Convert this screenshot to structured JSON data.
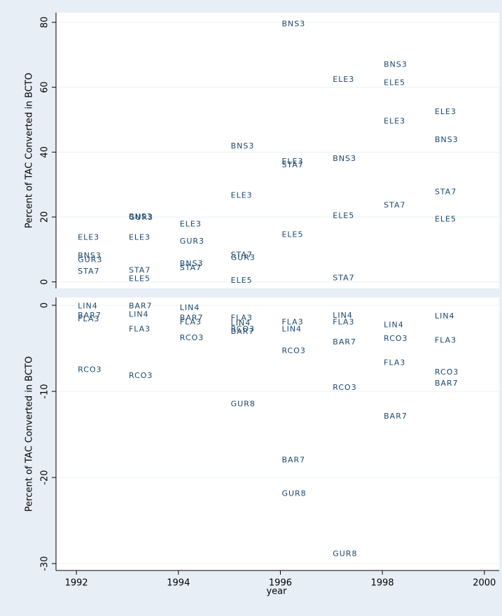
{
  "chart_data": [
    {
      "type": "scatter",
      "y_label": "Percent of TAC Converted in BCTO",
      "xlim": [
        1991.6,
        2000.25
      ],
      "ylim": [
        -2,
        83
      ],
      "yticks": [
        0,
        20,
        40,
        60,
        80
      ],
      "grid": true,
      "color": "#1a476f",
      "x": [
        1992,
        1992,
        1992,
        1992,
        1993,
        1993,
        1993,
        1993,
        1993,
        1994,
        1994,
        1994,
        1994,
        1995,
        1995,
        1995,
        1995,
        1995,
        1996,
        1996,
        1996,
        1996,
        1997,
        1997,
        1997,
        1997,
        1998,
        1998,
        1998,
        1998,
        1999,
        1999,
        1999,
        1999
      ],
      "values": [
        13.6,
        8,
        6.7,
        3.2,
        20,
        19.8,
        13.6,
        3.5,
        0.9,
        17.7,
        12.5,
        5.6,
        4.3,
        41.8,
        26.6,
        8.2,
        7.4,
        0.4,
        79.4,
        37,
        36,
        14.5,
        62.3,
        37.9,
        20.3,
        1.1,
        66.9,
        61.3,
        49.4,
        23.6,
        52.4,
        43.7,
        27.7,
        19.3
      ],
      "labels": [
        "ELE3",
        "BNS3",
        "GUR3",
        "STA7",
        "BNS3",
        "GUR3",
        "ELE3",
        "STA7",
        "ELE5",
        "ELE3",
        "GUR3",
        "BNS3",
        "STA7",
        "BNS3",
        "ELE3",
        "STA7",
        "GUR3",
        "ELE5",
        "BNS3",
        "ELE3",
        "STA7",
        "ELE5",
        "ELE3",
        "BNS3",
        "ELE5",
        "STA7",
        "BNS3",
        "ELE5",
        "ELE3",
        "STA7",
        "ELE3",
        "BNS3",
        "STA7",
        "ELE5"
      ]
    },
    {
      "type": "scatter",
      "y_label": "Percent of TAC Converted in BCTO",
      "x_label": "year",
      "xlim": [
        1991.6,
        2000.25
      ],
      "xticks": [
        1992,
        1994,
        1996,
        1998,
        2000
      ],
      "ylim": [
        -30.8,
        0.9
      ],
      "yticks": [
        0,
        -10,
        -20,
        -30
      ],
      "grid": true,
      "color": "#1a476f",
      "x": [
        1992,
        1992,
        1992,
        1992,
        1993,
        1993,
        1993,
        1993,
        1994,
        1994,
        1994,
        1994,
        1995,
        1995,
        1995,
        1995,
        1995,
        1996,
        1996,
        1996,
        1996,
        1996,
        1997,
        1997,
        1997,
        1997,
        1997,
        1998,
        1998,
        1998,
        1998,
        1999,
        1999,
        1999,
        1999
      ],
      "values": [
        -0.1,
        -1.2,
        -1.6,
        -7.5,
        -0.1,
        -1.1,
        -2.8,
        -8.2,
        -0.3,
        -1.5,
        -2,
        -3.8,
        -1.5,
        -2.1,
        -2.8,
        -3.1,
        -11.5,
        -2,
        -2.8,
        -5.3,
        -18,
        -21.9,
        -1.2,
        -2,
        -4.3,
        -9.6,
        -28.9,
        -2.3,
        -3.9,
        -6.7,
        -12.9,
        -1.3,
        -4.1,
        -7.8,
        -9.1
      ],
      "labels": [
        "LIN4",
        "BAR7",
        "FLA3",
        "RCO3",
        "BAR7",
        "LIN4",
        "FLA3",
        "RCO3",
        "LIN4",
        "BAR7",
        "FLA3",
        "RCO3",
        "FLA3",
        "LIN4",
        "RCO3",
        "BAR7",
        "GUR8",
        "FLA3",
        "LIN4",
        "RCO3",
        "BAR7",
        "GUR8",
        "LIN4",
        "FLA3",
        "BAR7",
        "RCO3",
        "GUR8",
        "LIN4",
        "RCO3",
        "FLA3",
        "BAR7",
        "LIN4",
        "FLA3",
        "RCO3",
        "BAR7"
      ]
    }
  ]
}
